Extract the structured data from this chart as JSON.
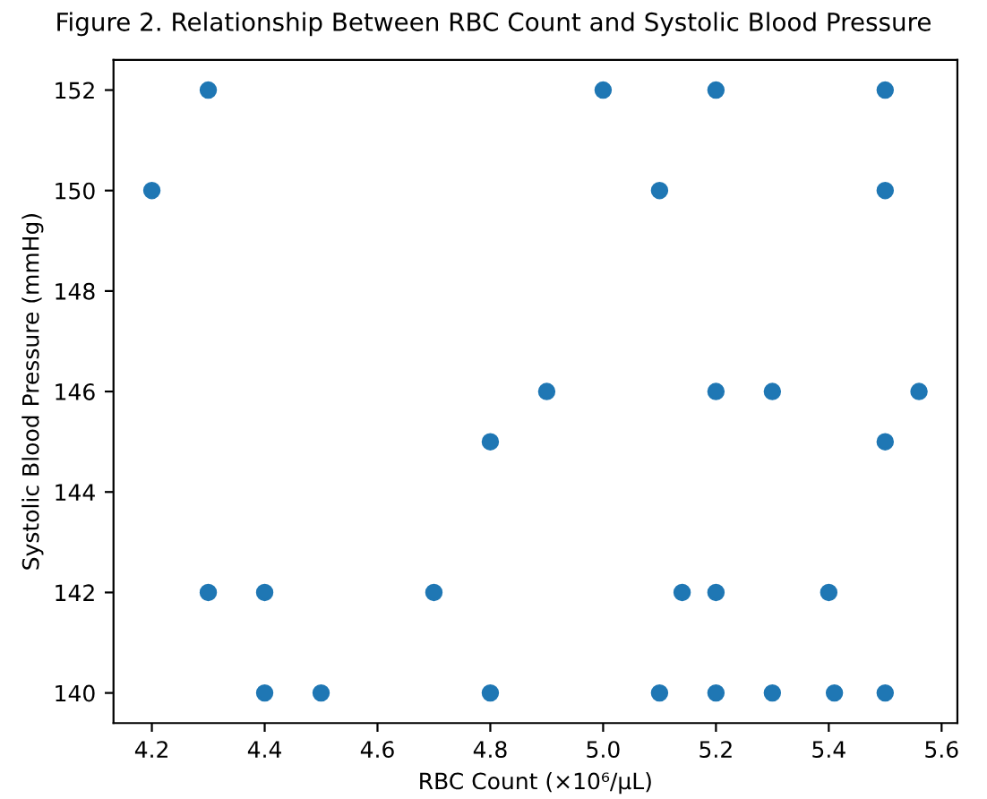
{
  "chart_data": {
    "type": "scatter",
    "title": "Figure 2. Relationship Between RBC Count and Systolic Blood Pressure",
    "xlabel": "RBC Count (×10⁶/μL)",
    "ylabel": "Systolic Blood Pressure (mmHg)",
    "x": [
      4.3,
      5.0,
      5.2,
      5.5,
      4.2,
      5.1,
      5.5,
      4.9,
      5.2,
      5.3,
      5.56,
      4.8,
      5.5,
      4.3,
      4.4,
      4.7,
      5.14,
      5.2,
      5.4,
      4.4,
      4.5,
      4.8,
      5.1,
      5.2,
      5.3,
      5.41,
      5.5
    ],
    "series": [
      {
        "color": "#1f77b4",
        "values": [
          152,
          152,
          152,
          152,
          150,
          150,
          150,
          146,
          146,
          146,
          146,
          145,
          145,
          142,
          142,
          142,
          142,
          142,
          142,
          140,
          140,
          140,
          140,
          140,
          140,
          140,
          140
        ]
      }
    ],
    "xlim": [
      4.132,
      5.628
    ],
    "ylim": [
      139.4,
      152.6
    ],
    "xticks": [
      4.2,
      4.4,
      4.6,
      4.8,
      {
        "value": 5.0,
        "label": "5.0"
      },
      5.2,
      5.4,
      5.6
    ],
    "yticks": [
      140,
      142,
      144,
      146,
      148,
      150,
      152
    ],
    "marker": "circle",
    "grid": false
  }
}
